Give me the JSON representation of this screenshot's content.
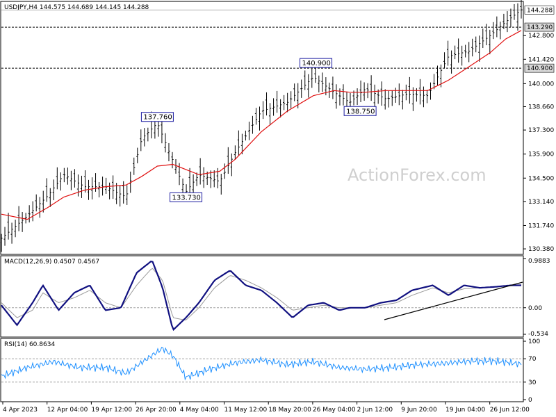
{
  "watermark": "ActionForex.com",
  "main": {
    "header": "USDJPY,H4  144.575 144.689 144.145 144.288",
    "price_ticks": [
      "142.800",
      "141.420",
      "140.000",
      "138.660",
      "137.300",
      "135.900",
      "134.500",
      "133.140",
      "131.740",
      "130.380"
    ],
    "levels": [
      {
        "label": "144.288",
        "value": 144.288,
        "style": "solid",
        "box": "filled"
      },
      {
        "label": "143.290",
        "value": 143.29,
        "style": "dashed",
        "box": "gray"
      },
      {
        "label": "140.900",
        "value": 140.9,
        "style": "dashed",
        "box": "gray"
      }
    ],
    "annotations": [
      {
        "label": "137.760",
        "value": 137.76,
        "at": 0.3,
        "pos": "above"
      },
      {
        "label": "133.730",
        "value": 133.73,
        "at": 0.355,
        "pos": "below"
      },
      {
        "label": "140.900",
        "value": 140.9,
        "at": 0.605,
        "pos": "above"
      },
      {
        "label": "138.750",
        "value": 138.75,
        "at": 0.69,
        "pos": "below"
      }
    ]
  },
  "macd": {
    "header": "MACD(12,26,9) 0.4507 0.4567",
    "ticks": [
      "0.9883",
      "0.00",
      "-0.534"
    ]
  },
  "rsi": {
    "header": "RSI(14) 60.8634",
    "ticks": [
      "100",
      "70",
      "30",
      "0"
    ]
  },
  "time_labels": [
    "4 Apr 2023",
    "12 Apr 04:00",
    "19 Apr 12:00",
    "26 Apr 20:00",
    "4 May 04:00",
    "11 May 12:00",
    "18 May 20:00",
    "26 May 04:00",
    "2 Jun 12:00",
    "9 Jun 20:00",
    "19 Jun 04:00",
    "26 Jun 12:00"
  ],
  "chart_data": [
    {
      "type": "line",
      "title": "USDJPY,H4",
      "values_note": "close (approx), with moving average",
      "x": [
        0,
        0.05,
        0.09,
        0.12,
        0.16,
        0.2,
        0.24,
        0.27,
        0.3,
        0.33,
        0.355,
        0.38,
        0.42,
        0.45,
        0.5,
        0.55,
        0.6,
        0.64,
        0.67,
        0.7,
        0.74,
        0.78,
        0.82,
        0.86,
        0.9,
        0.94,
        0.97,
        1.0
      ],
      "series": [
        {
          "values": [
            131.0,
            132.3,
            133.5,
            134.7,
            134.0,
            134.0,
            133.4,
            136.8,
            137.7,
            135.5,
            133.7,
            134.7,
            134.3,
            136.0,
            138.4,
            138.9,
            140.4,
            139.5,
            138.9,
            139.7,
            139.1,
            139.4,
            139.3,
            141.6,
            141.9,
            142.8,
            143.6,
            144.3
          ]
        },
        {
          "values": [
            132.4,
            132.1,
            132.8,
            133.4,
            133.8,
            134.0,
            134.1,
            134.6,
            135.2,
            135.3,
            135.0,
            134.7,
            134.9,
            135.6,
            137.2,
            138.4,
            139.3,
            139.6,
            139.5,
            139.5,
            139.6,
            139.6,
            139.6,
            140.2,
            141.0,
            141.8,
            142.6,
            143.1
          ]
        }
      ],
      "ylim": [
        130.1,
        144.75
      ]
    },
    {
      "type": "line",
      "title": "MACD(12,26,9)",
      "x": [
        0,
        0.03,
        0.06,
        0.08,
        0.11,
        0.14,
        0.17,
        0.2,
        0.23,
        0.26,
        0.29,
        0.31,
        0.33,
        0.355,
        0.38,
        0.41,
        0.44,
        0.47,
        0.5,
        0.53,
        0.56,
        0.59,
        0.62,
        0.65,
        0.67,
        0.7,
        0.73,
        0.76,
        0.79,
        0.83,
        0.86,
        0.89,
        0.92,
        0.95,
        0.98,
        1.0
      ],
      "series": [
        {
          "values": [
            0.05,
            -0.35,
            0.1,
            0.45,
            -0.05,
            0.3,
            0.45,
            -0.05,
            0.0,
            0.7,
            0.95,
            0.4,
            -0.45,
            -0.2,
            0.1,
            0.55,
            0.75,
            0.45,
            0.35,
            0.1,
            -0.2,
            0.05,
            0.1,
            -0.05,
            0.0,
            0.0,
            0.1,
            0.15,
            0.35,
            0.45,
            0.25,
            0.45,
            0.4,
            0.42,
            0.45,
            0.45
          ]
        },
        {
          "values": [
            0.1,
            -0.2,
            -0.05,
            0.3,
            0.1,
            0.2,
            0.35,
            0.1,
            0.0,
            0.45,
            0.8,
            0.55,
            -0.2,
            -0.25,
            0.0,
            0.4,
            0.65,
            0.55,
            0.4,
            0.2,
            -0.05,
            0.0,
            0.05,
            0.0,
            0.0,
            0.0,
            0.05,
            0.1,
            0.25,
            0.4,
            0.3,
            0.38,
            0.4,
            0.42,
            0.45,
            0.46
          ]
        }
      ],
      "ylim": [
        -0.534,
        0.9883
      ]
    },
    {
      "type": "line",
      "title": "RSI(14)",
      "x": [
        0,
        0.05,
        0.1,
        0.15,
        0.2,
        0.24,
        0.28,
        0.31,
        0.33,
        0.355,
        0.4,
        0.45,
        0.5,
        0.55,
        0.6,
        0.65,
        0.7,
        0.75,
        0.8,
        0.85,
        0.9,
        0.95,
        1.0
      ],
      "series": [
        {
          "values": [
            40,
            55,
            65,
            55,
            55,
            45,
            70,
            88,
            75,
            38,
            52,
            63,
            68,
            60,
            65,
            55,
            52,
            55,
            60,
            62,
            66,
            66,
            61
          ]
        }
      ],
      "ylim": [
        0,
        100
      ]
    }
  ]
}
